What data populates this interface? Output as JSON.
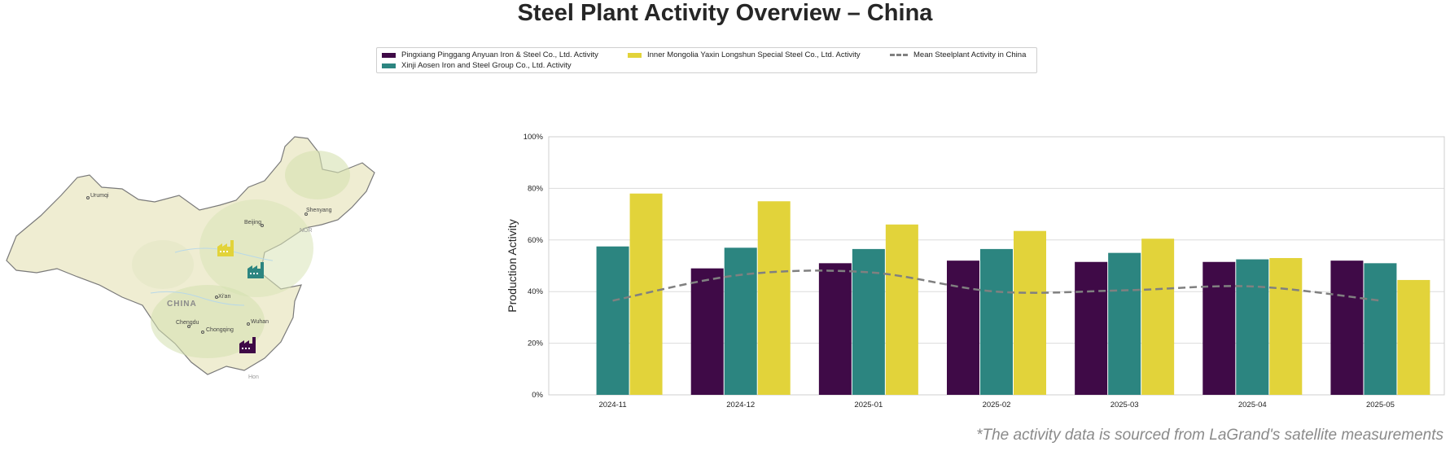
{
  "title": "Steel Plant Activity Overview – China",
  "footnote": "*The activity data is sourced from LaGrand's satellite measurements",
  "legend": [
    {
      "label": "Pingxiang Pinggang Anyuan Iron & Steel Co., Ltd. Activity",
      "color": "#3f0a47",
      "kind": "bar"
    },
    {
      "label": "Xinji Aosen Iron and Steel Group Co., Ltd. Activity",
      "color": "#2c8580",
      "kind": "bar"
    },
    {
      "label": "Inner Mongolia Yaxin Longshun Special Steel Co., Ltd. Activity",
      "color": "#e2d33a",
      "kind": "bar"
    },
    {
      "label": "Mean Steelplant Activity in China",
      "color": "#808080",
      "kind": "dashed-line"
    }
  ],
  "map": {
    "country_label": "CHINA",
    "cities": [
      "Urumqi",
      "Beijing",
      "Shenyang",
      "Xi'an",
      "Chengdu",
      "Chongqing",
      "Wuhan"
    ],
    "partial_labels": [
      "NOR",
      "Hon"
    ],
    "land_color": "#efedd2",
    "plants": [
      {
        "name": "Inner Mongolia Yaxin Longshun Special Steel Co., Ltd.",
        "color": "#e2d33a",
        "icon": "factory-icon"
      },
      {
        "name": "Xinji Aosen Iron and Steel Group Co., Ltd.",
        "color": "#2c8580",
        "icon": "factory-icon"
      },
      {
        "name": "Pingxiang Pinggang Anyuan Iron & Steel Co., Ltd.",
        "color": "#3f0a47",
        "icon": "factory-icon"
      }
    ]
  },
  "chart_data": {
    "type": "bar",
    "ylabel": "Production Activity",
    "ylim": [
      0,
      100
    ],
    "yticks": [
      0,
      20,
      40,
      60,
      80,
      100
    ],
    "ytick_labels": [
      "0%",
      "20%",
      "40%",
      "60%",
      "80%",
      "100%"
    ],
    "grid": true,
    "categories": [
      "2024-11",
      "2024-12",
      "2025-01",
      "2025-02",
      "2025-03",
      "2025-04",
      "2025-05"
    ],
    "series": [
      {
        "name": "Pingxiang Pinggang Anyuan Iron & Steel Co., Ltd. Activity",
        "color": "#3f0a47",
        "values": [
          null,
          49,
          51,
          52,
          51.5,
          51.5,
          52
        ]
      },
      {
        "name": "Xinji Aosen Iron and Steel Group Co., Ltd. Activity",
        "color": "#2c8580",
        "values": [
          57.5,
          57,
          56.5,
          56.5,
          55,
          52.5,
          51
        ]
      },
      {
        "name": "Inner Mongolia Yaxin Longshun Special Steel Co., Ltd. Activity",
        "color": "#e2d33a",
        "values": [
          78,
          75,
          66,
          63.5,
          60.5,
          53,
          44.5
        ]
      }
    ],
    "line_series": {
      "name": "Mean Steelplant Activity in China",
      "color": "#808080",
      "style": "dashed",
      "values": [
        36.5,
        46.5,
        47.5,
        40,
        40.5,
        42,
        36.5
      ]
    }
  }
}
